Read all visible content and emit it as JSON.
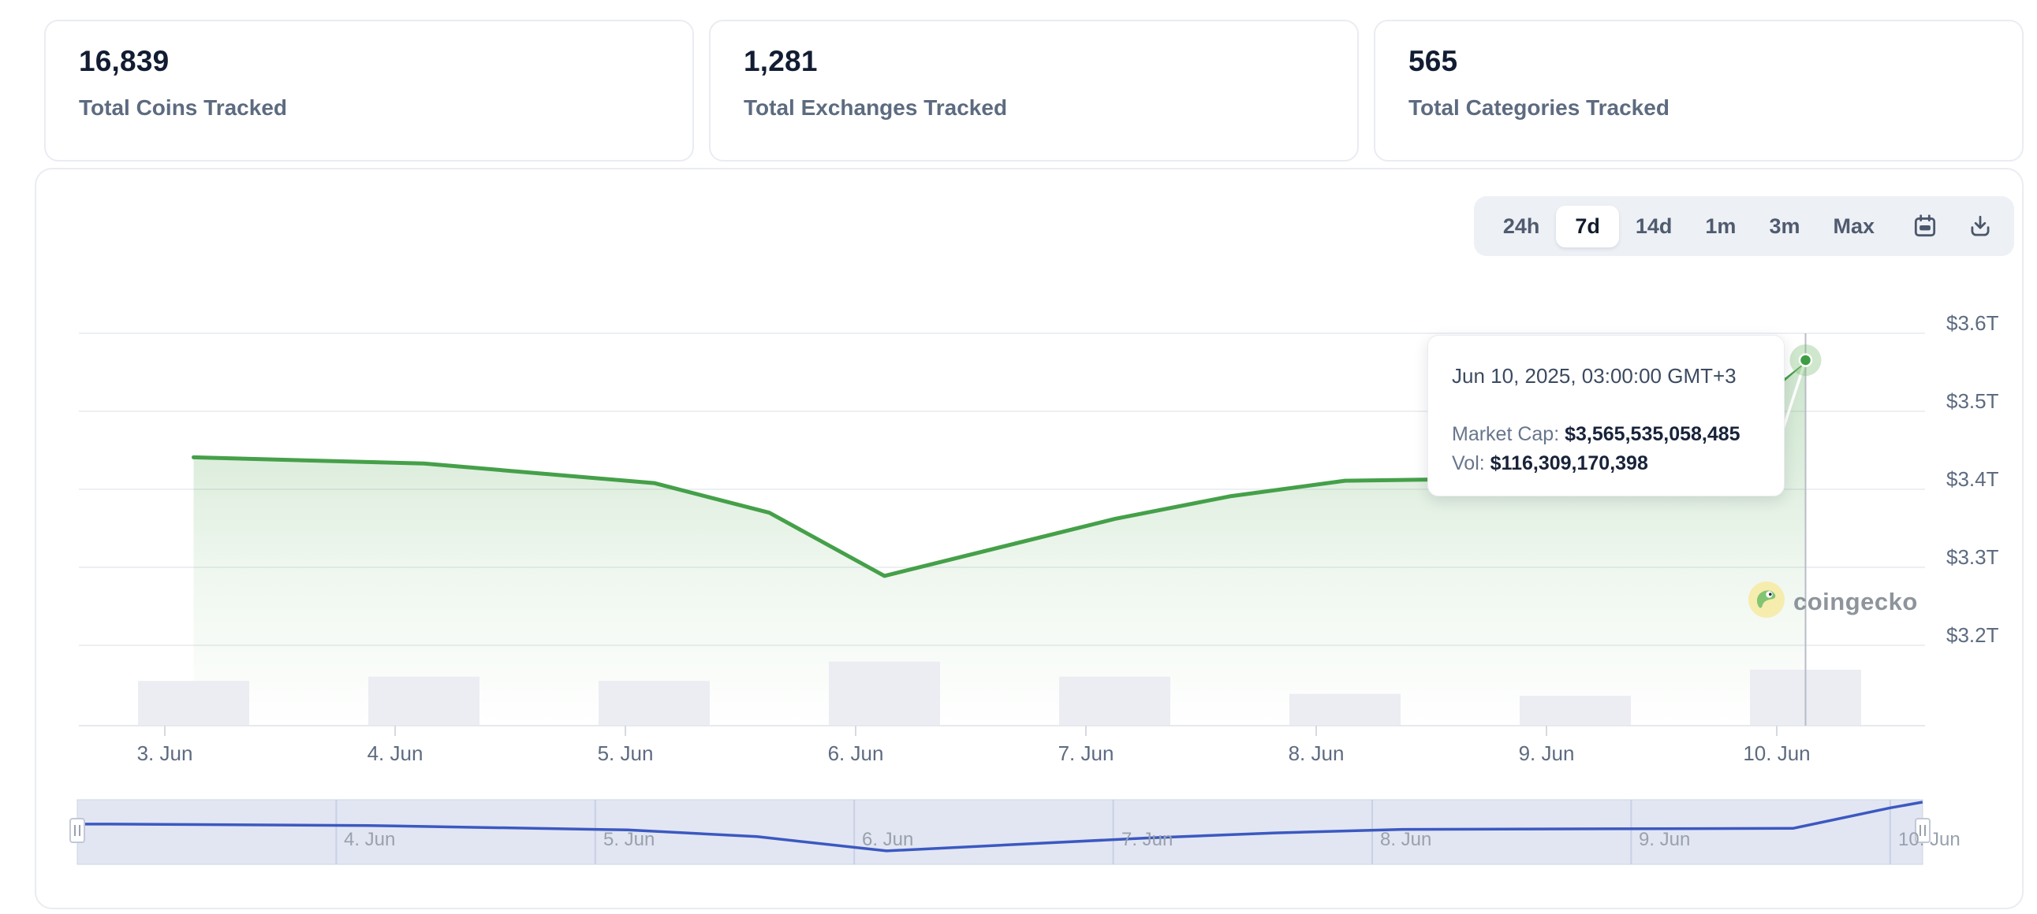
{
  "stats": {
    "cards": [
      {
        "value": "16,839",
        "label": "Total Coins Tracked"
      },
      {
        "value": "1,281",
        "label": "Total Exchanges Tracked"
      },
      {
        "value": "565",
        "label": "Total Categories Tracked"
      }
    ]
  },
  "toolbar": {
    "ranges": [
      "24h",
      "7d",
      "14d",
      "1m",
      "3m",
      "Max"
    ],
    "active": "7d",
    "icons": [
      "calendar-icon",
      "download-icon"
    ]
  },
  "tooltip": {
    "datetime": "Jun 10, 2025, 03:00:00 GMT+3",
    "market_cap_label": "Market Cap:",
    "market_cap_value": "$3,565,535,058,485",
    "vol_label": "Vol:",
    "vol_value": "$116,309,170,398"
  },
  "watermark": {
    "text": "coingecko"
  },
  "chart_data": {
    "type": "area",
    "series_name": "Market Cap",
    "x_axis": {
      "tick_labels": [
        "3. Jun",
        "4. Jun",
        "5. Jun",
        "6. Jun",
        "7. Jun",
        "8. Jun",
        "9. Jun",
        "10. Jun"
      ]
    },
    "y_axis": {
      "tick_labels": [
        "$3.6T",
        "$3.5T",
        "$3.4T",
        "$3.3T",
        "$3.2T"
      ],
      "tick_values_t": [
        3.6,
        3.5,
        3.4,
        3.3,
        3.2
      ],
      "approx_range_t": [
        3.1,
        3.63
      ],
      "grid": true,
      "position": "right"
    },
    "market_cap_series": {
      "color": "#45a049",
      "points": [
        {
          "label": "Jun 3, 03:00",
          "d": 0.125,
          "value_t": 3.441
        },
        {
          "label": "Jun 4, 03:00",
          "d": 1.125,
          "value_t": 3.433
        },
        {
          "label": "Jun 5, 03:00",
          "d": 2.125,
          "value_t": 3.408
        },
        {
          "label": "Jun 5, 15:00",
          "d": 2.625,
          "value_t": 3.37
        },
        {
          "label": "Jun 6, 03:00",
          "d": 3.125,
          "value_t": 3.289
        },
        {
          "label": "Jun 7, 03:00",
          "d": 4.125,
          "value_t": 3.362
        },
        {
          "label": "Jun 7, 15:00",
          "d": 4.625,
          "value_t": 3.391
        },
        {
          "label": "Jun 8, 03:00",
          "d": 5.125,
          "value_t": 3.411
        },
        {
          "label": "Jun 9, 03:00",
          "d": 6.125,
          "value_t": 3.415
        },
        {
          "label": "Jun 9, 15:00",
          "d": 6.625,
          "value_t": 3.417
        },
        {
          "label": "Jun 10, 00:00",
          "d": 7.0,
          "value_t": 3.533
        },
        {
          "label": "Jun 10, 03:00",
          "d": 7.125,
          "value_t": 3.5655
        }
      ]
    },
    "volume_series": {
      "color": "#ebedf2",
      "unit": "billion USD (estimated from bar heights)",
      "bars": [
        {
          "label": "3. Jun",
          "d": 0.125,
          "value_b": 93
        },
        {
          "label": "4. Jun",
          "d": 1.125,
          "value_b": 102
        },
        {
          "label": "5. Jun",
          "d": 2.125,
          "value_b": 93
        },
        {
          "label": "6. Jun",
          "d": 3.125,
          "value_b": 133
        },
        {
          "label": "7. Jun",
          "d": 4.125,
          "value_b": 102
        },
        {
          "label": "8. Jun",
          "d": 5.125,
          "value_b": 66
        },
        {
          "label": "9. Jun",
          "d": 6.125,
          "value_b": 62
        },
        {
          "label": "10. Jun",
          "d": 7.125,
          "value_b": 116.3
        }
      ]
    },
    "selected_point": {
      "datetime": "Jun 10, 2025, 03:00:00 GMT+3",
      "d": 7.125,
      "market_cap_usd": 3565535058485,
      "volume_usd": 116309170398,
      "marker_color": "#3f9d45"
    },
    "navigator": {
      "labels": [
        "4. Jun",
        "5. Jun",
        "6. Jun",
        "7. Jun",
        "8. Jun",
        "9. Jun",
        "10. Jun"
      ],
      "line_color": "#3c59c0",
      "track_color": "#e2e6f3",
      "selected_range": "full"
    },
    "legend": false
  }
}
